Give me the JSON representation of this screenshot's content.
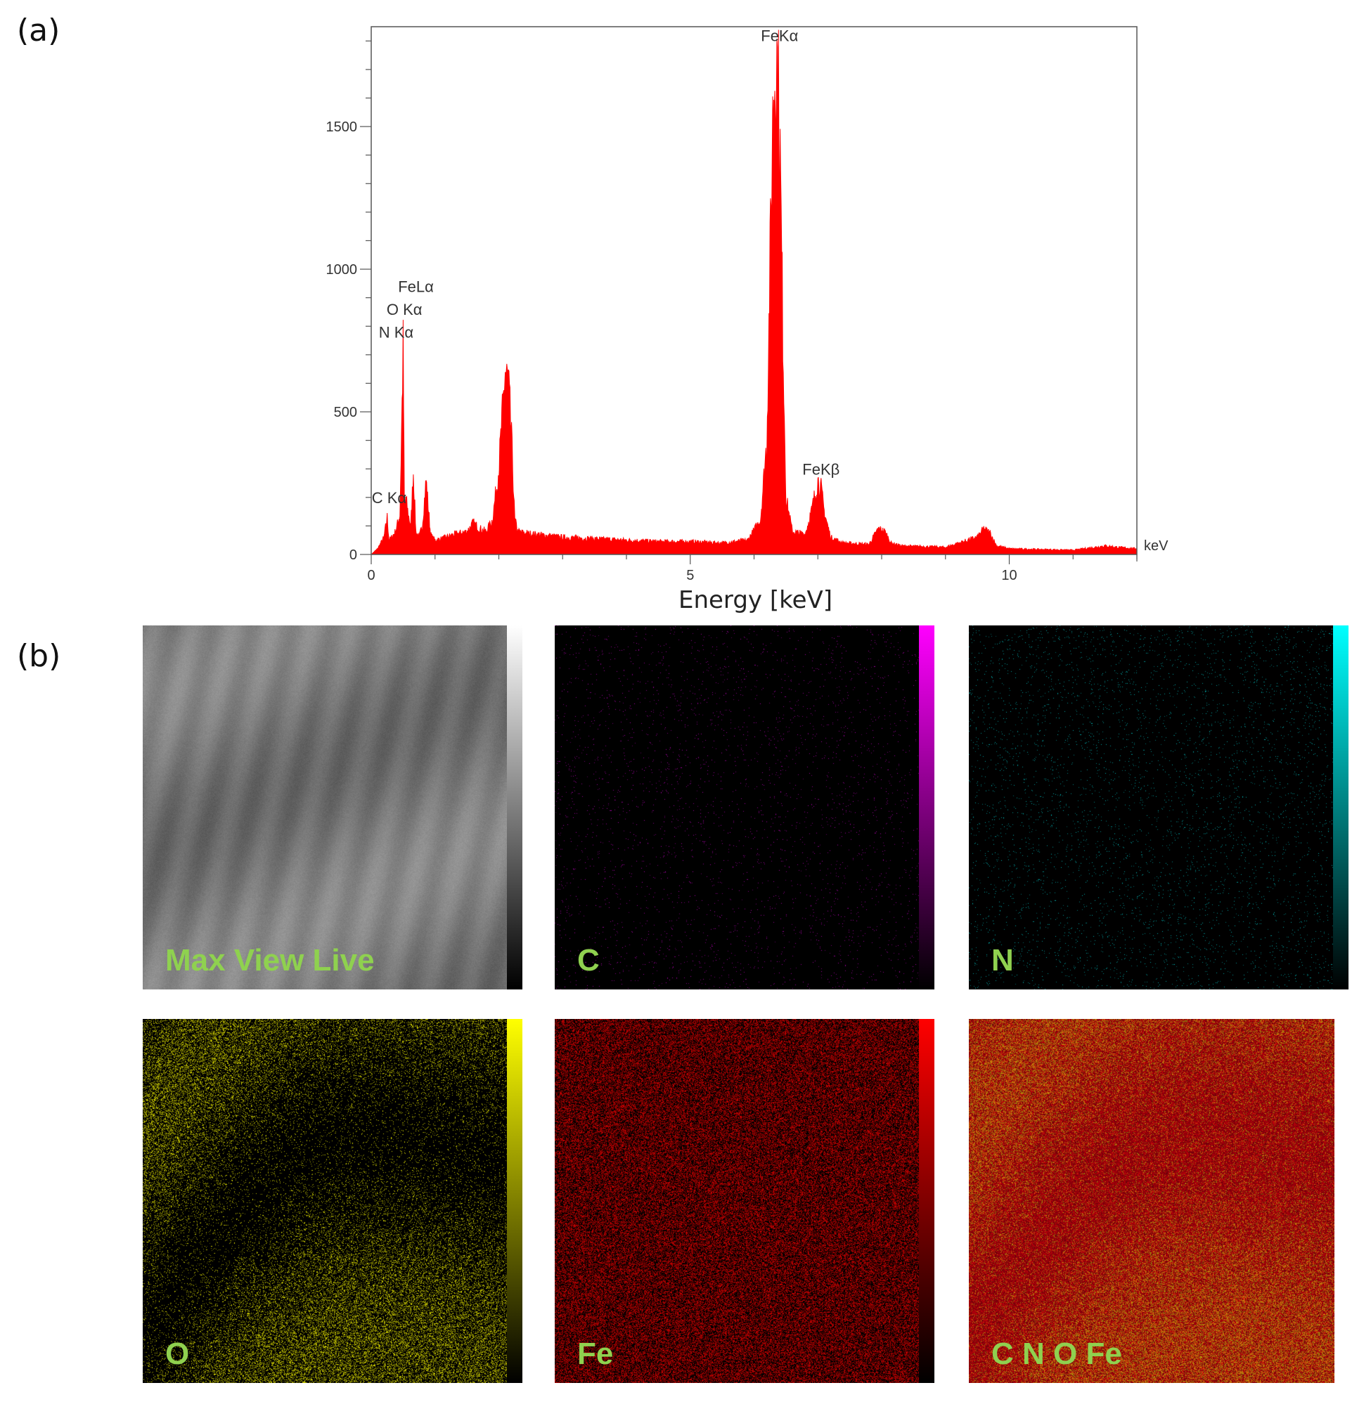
{
  "labels": {
    "a": "(a)",
    "b": "(b)"
  },
  "chart_data": {
    "type": "area",
    "xlabel": "Energy [keV]",
    "x_unit": "keV",
    "xlim": [
      0,
      12
    ],
    "ylim": [
      0,
      1850
    ],
    "xticks": [
      0,
      5,
      10
    ],
    "yticks": [
      0,
      500,
      1000,
      1500
    ],
    "grid": false,
    "series": [
      {
        "color": "#ff0000",
        "x": [
          0,
          0.1,
          0.2,
          0.25,
          0.28,
          0.32,
          0.38,
          0.45,
          0.5,
          0.52,
          0.54,
          0.58,
          0.62,
          0.66,
          0.7,
          0.75,
          0.8,
          0.86,
          0.9,
          0.93,
          0.96,
          1.0,
          1.1,
          1.3,
          1.5,
          1.6,
          1.7,
          1.8,
          1.9,
          2.0,
          2.1,
          2.15,
          2.2,
          2.25,
          2.3,
          2.4,
          2.6,
          3.0,
          3.5,
          4.0,
          4.5,
          5.0,
          5.5,
          5.9,
          6.1,
          6.2,
          6.3,
          6.35,
          6.4,
          6.45,
          6.5,
          6.6,
          6.8,
          6.9,
          7.0,
          7.05,
          7.1,
          7.2,
          7.4,
          7.8,
          7.95,
          8.05,
          8.15,
          8.3,
          9.0,
          9.5,
          9.6,
          9.7,
          9.8,
          10.0,
          11.0,
          11.5,
          11.7,
          12.0
        ],
        "y": [
          0,
          20,
          60,
          130,
          50,
          60,
          80,
          140,
          720,
          150,
          200,
          140,
          100,
          290,
          80,
          60,
          100,
          260,
          150,
          70,
          60,
          50,
          55,
          70,
          80,
          110,
          90,
          80,
          120,
          300,
          640,
          600,
          400,
          120,
          80,
          75,
          70,
          60,
          55,
          50,
          45,
          45,
          40,
          50,
          120,
          400,
          1600,
          1780,
          1500,
          800,
          200,
          80,
          70,
          150,
          260,
          230,
          150,
          60,
          40,
          35,
          90,
          80,
          40,
          30,
          25,
          60,
          90,
          75,
          30,
          20,
          15,
          30,
          25,
          20
        ]
      }
    ],
    "annotations": [
      {
        "text": "FeKα",
        "x": 6.4,
        "y": 1780
      },
      {
        "text": "FeKβ",
        "x": 7.05,
        "y": 260
      },
      {
        "text": "FeLα",
        "x": 0.7,
        "y": 900
      },
      {
        "text": "O Kα",
        "x": 0.52,
        "y": 820
      },
      {
        "text": "N Kα",
        "x": 0.39,
        "y": 740
      },
      {
        "text": "C Kα",
        "x": 0.28,
        "y": 160
      }
    ]
  },
  "maps": [
    {
      "label": "Max View Live",
      "color": "#8fd14f",
      "colorbar": [
        "#000000",
        "#ffffff"
      ]
    },
    {
      "label": "C",
      "color": "#ff00ff",
      "colorbar": [
        "#000000",
        "#ff00ff"
      ]
    },
    {
      "label": "N",
      "color": "#00ffff",
      "colorbar": [
        "#000000",
        "#00ffff"
      ]
    },
    {
      "label": "O",
      "color": "#ffff00",
      "colorbar": [
        "#000000",
        "#ffff00"
      ]
    },
    {
      "label": "Fe",
      "color": "#ff0000",
      "colorbar": [
        "#000000",
        "#ff0000"
      ]
    },
    {
      "label": "C N O Fe",
      "color": "#cc4400",
      "colorbar": []
    }
  ]
}
